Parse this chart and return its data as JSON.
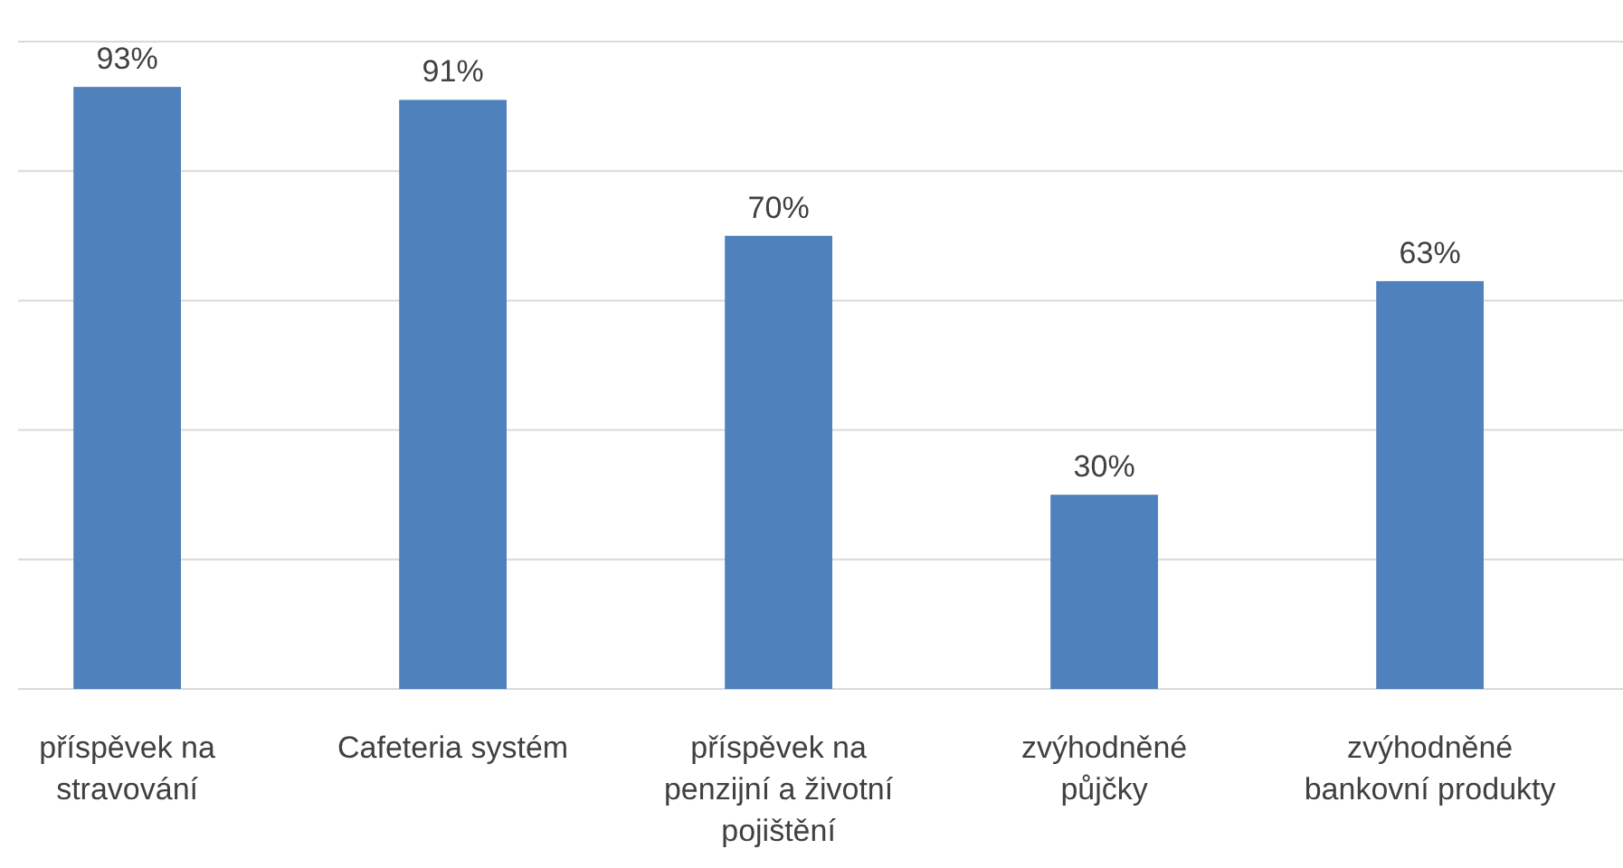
{
  "chart_data": {
    "type": "bar",
    "categories": [
      "příspěvek na stravování",
      "Cafeteria systém",
      "příspěvek na penzijní a životní pojištění",
      "zvýhodněné půjčky",
      "zvýhodněné bankovní produkty"
    ],
    "values": [
      93,
      91,
      70,
      30,
      63
    ],
    "color": "#4f81bd",
    "data_labels": true,
    "value_labels": [
      "93%",
      "91%",
      "70%",
      "30%",
      "63%"
    ],
    "ylim": [
      0,
      100
    ],
    "yticks": [
      {
        "value": 0,
        "label": null
      },
      {
        "value": 20,
        "label": null
      },
      {
        "value": 40,
        "label": null
      },
      {
        "value": 60,
        "label": null
      },
      {
        "value": 80,
        "label": null
      },
      {
        "value": 100,
        "label": null
      }
    ],
    "grid": "y",
    "tick_labels": "x"
  }
}
